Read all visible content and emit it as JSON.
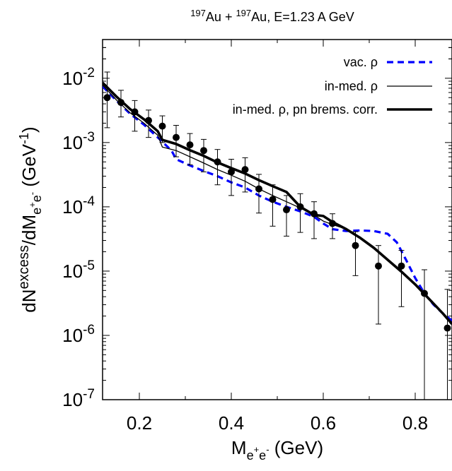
{
  "chart_data": {
    "type": "line",
    "title": {
      "mass1": "197",
      "el1": "Au",
      "mid": " + ",
      "mass2": "197",
      "el2": "Au",
      "rest": ", E=1.23 A GeV"
    },
    "xlabel": {
      "main": "M",
      "sub1": "e",
      "sup": "+",
      "sub2": "e",
      "sup2": "-",
      "unit": " (GeV)"
    },
    "ylabel": {
      "d1": "dN",
      "sup1": "excess",
      "slash": "/dM",
      "sub1": "e",
      "subsup1": "+",
      "sub2": "e",
      "subsup2": "-",
      "unit_open": " (GeV",
      "unit_sup": "-1",
      "unit_close": ")"
    },
    "xlim": [
      0.12,
      0.88
    ],
    "ylim": [
      1e-07,
      0.04
    ],
    "yscale": "log",
    "x_ticks": [
      {
        "value": 0.2,
        "label": "0.2"
      },
      {
        "value": 0.4,
        "label": "0.4"
      },
      {
        "value": 0.6,
        "label": "0.6"
      },
      {
        "value": 0.8,
        "label": "0.8"
      }
    ],
    "y_ticks": [
      {
        "value": 0.01,
        "base": "10",
        "exp": "-2"
      },
      {
        "value": 0.001,
        "base": "10",
        "exp": "-3"
      },
      {
        "value": 0.0001,
        "base": "10",
        "exp": "-4"
      },
      {
        "value": 1e-05,
        "base": "10",
        "exp": "-5"
      },
      {
        "value": 1e-06,
        "base": "10",
        "exp": "-6"
      },
      {
        "value": 1e-07,
        "base": "10",
        "exp": "-7"
      }
    ],
    "legend_position": "top-right",
    "series": [
      {
        "name": "vac. ρ",
        "color": "#0000ff",
        "style": "dashed",
        "x": [
          0.12,
          0.15,
          0.18,
          0.21,
          0.24,
          0.27,
          0.28,
          0.31,
          0.34,
          0.37,
          0.4,
          0.43,
          0.46,
          0.49,
          0.52,
          0.55,
          0.58,
          0.6,
          0.62,
          0.65,
          0.68,
          0.71,
          0.74,
          0.76,
          0.78,
          0.8,
          0.82,
          0.84,
          0.86,
          0.88
        ],
        "y": [
          0.0075,
          0.0045,
          0.0028,
          0.0019,
          0.0012,
          0.00075,
          0.00055,
          0.00044,
          0.00036,
          0.0003,
          0.00024,
          0.0002,
          0.00015,
          0.00012,
          0.0001,
          8.5e-05,
          7e-05,
          5.5e-05,
          4.5e-05,
          4.2e-05,
          4.3e-05,
          4.2e-05,
          3.8e-05,
          2.8e-05,
          1.5e-05,
          7.8e-06,
          4.5e-06,
          3e-06,
          2.2e-06,
          1.7e-06
        ]
      },
      {
        "name": "in-med. ρ",
        "color": "#000000",
        "style": "thin",
        "x": [
          0.12,
          0.15,
          0.18,
          0.21,
          0.24,
          0.25,
          0.28,
          0.31,
          0.34,
          0.37,
          0.4,
          0.43,
          0.46,
          0.49,
          0.52,
          0.55,
          0.58,
          0.6,
          0.62,
          0.65,
          0.68,
          0.71,
          0.74,
          0.77,
          0.8,
          0.83,
          0.86,
          0.88
        ],
        "y": [
          0.0078,
          0.0046,
          0.0029,
          0.002,
          0.0013,
          0.00085,
          0.00075,
          0.0006,
          0.00048,
          0.00038,
          0.00031,
          0.00025,
          0.00019,
          0.00015,
          0.00012,
          9.6e-05,
          7.5e-05,
          6e-05,
          5.3e-05,
          4.5e-05,
          3.3e-05,
          2.3e-05,
          1.5e-05,
          9.8e-06,
          6.2e-06,
          3.7e-06,
          2.2e-06,
          1.5e-06
        ]
      },
      {
        "name": "in-med. ρ, pn brems. corr.",
        "color": "#000000",
        "style": "thick",
        "x": [
          0.12,
          0.15,
          0.18,
          0.21,
          0.24,
          0.25,
          0.28,
          0.31,
          0.34,
          0.37,
          0.4,
          0.43,
          0.46,
          0.49,
          0.52,
          0.55,
          0.58,
          0.6,
          0.62,
          0.65,
          0.68,
          0.71,
          0.74,
          0.77,
          0.8,
          0.83,
          0.86,
          0.88
        ],
        "y": [
          0.0085,
          0.0052,
          0.0033,
          0.0023,
          0.0015,
          0.0011,
          0.00095,
          0.00076,
          0.00062,
          0.00049,
          0.0004,
          0.00033,
          0.00026,
          0.00021,
          0.00017,
          0.0001,
          7.5e-05,
          7.2e-05,
          5.8e-05,
          4.5e-05,
          3.3e-05,
          2.3e-05,
          1.5e-05,
          9.8e-06,
          6.2e-06,
          3.7e-06,
          2.2e-06,
          1.5e-06
        ]
      }
    ],
    "data_points": {
      "color": "#000000",
      "x": [
        0.13,
        0.16,
        0.19,
        0.22,
        0.25,
        0.28,
        0.31,
        0.34,
        0.37,
        0.4,
        0.43,
        0.46,
        0.49,
        0.52,
        0.55,
        0.58,
        0.62,
        0.67,
        0.72,
        0.77,
        0.82,
        0.87
      ],
      "y": [
        0.005,
        0.0042,
        0.003,
        0.0022,
        0.0018,
        0.0012,
        0.00092,
        0.00075,
        0.0005,
        0.00035,
        0.00038,
        0.00019,
        0.00013,
        9e-05,
        0.0001,
        7.8e-05,
        5.5e-05,
        2.5e-05,
        1.2e-05,
        1.2e-05,
        4.5e-06,
        1.3e-06
      ],
      "lo": [
        0.0017,
        0.0025,
        0.0015,
        0.0012,
        0.001,
        0.0006,
        0.00045,
        0.00035,
        0.00022,
        0.00015,
        0.00017,
        8e-05,
        5e-05,
        3.5e-05,
        4e-05,
        3.2e-05,
        3.2e-05,
        8.5e-06,
        1.5e-06,
        2.8e-06,
        1e-07,
        1e-07
      ],
      "hi": [
        0.0125,
        0.0065,
        0.0045,
        0.0032,
        0.0026,
        0.00185,
        0.00138,
        0.00112,
        0.00078,
        0.00055,
        0.00058,
        0.00032,
        0.00022,
        0.00015,
        0.00016,
        0.00012,
        7.8e-05,
        4.1e-05,
        2.5e-05,
        2.1e-05,
        1.05e-05,
        5.2e-06
      ]
    }
  }
}
